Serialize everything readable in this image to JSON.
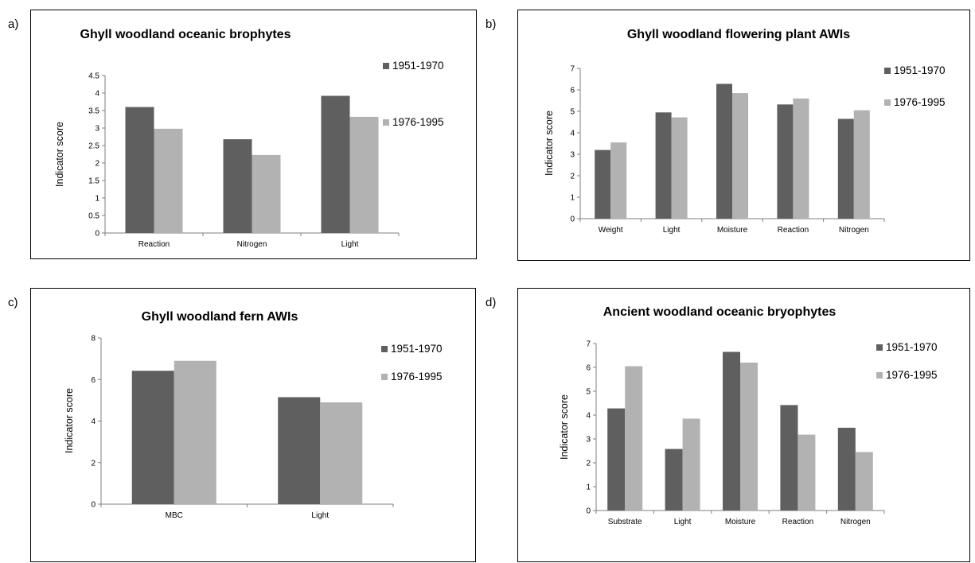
{
  "colors": {
    "series1": "#5f5f5f",
    "series2": "#b2b2b2",
    "axis": "#7f7f7f"
  },
  "chart_data": [
    {
      "panel": "a)",
      "type": "bar",
      "title": "Ghyll woodland oceanic brophytes",
      "ylabel": "Indicator score",
      "xlabel": "",
      "categories": [
        "Reaction",
        "Nitrogen",
        "Light"
      ],
      "ylim": [
        0,
        4.5
      ],
      "yticks": [
        "0",
        "0.5",
        "1",
        "1.5",
        "2",
        "2.5",
        "3",
        "3.5",
        "4",
        "4.5"
      ],
      "ytick_values": [
        0,
        0.5,
        1,
        1.5,
        2,
        2.5,
        3,
        3.5,
        4,
        4.5
      ],
      "grid": false,
      "legend_position": "right",
      "series": [
        {
          "name": "1951-1970",
          "values": [
            3.6,
            2.68,
            3.92
          ]
        },
        {
          "name": "1976-1995",
          "values": [
            2.98,
            2.23,
            3.32
          ]
        }
      ]
    },
    {
      "panel": "b)",
      "type": "bar",
      "title": "Ghyll woodland flowering plant AWIs",
      "ylabel": "Indicator score",
      "xlabel": "",
      "categories": [
        "Weight",
        "Light",
        "Moisture",
        "Reaction",
        "Nitrogen"
      ],
      "ylim": [
        0,
        7
      ],
      "yticks": [
        "0",
        "1",
        "2",
        "3",
        "4",
        "5",
        "6",
        "7"
      ],
      "ytick_values": [
        0,
        1,
        2,
        3,
        4,
        5,
        6,
        7
      ],
      "grid": false,
      "legend_position": "right",
      "series": [
        {
          "name": "1951-1970",
          "values": [
            3.2,
            4.95,
            6.28,
            5.32,
            4.65
          ]
        },
        {
          "name": "1976-1995",
          "values": [
            3.55,
            4.72,
            5.85,
            5.6,
            5.05
          ]
        }
      ]
    },
    {
      "panel": "c)",
      "type": "bar",
      "title": "Ghyll woodland fern AWIs",
      "ylabel": "Indicator score",
      "xlabel": "",
      "categories": [
        "MBC",
        "Light"
      ],
      "ylim": [
        0,
        8
      ],
      "yticks": [
        "0",
        "2",
        "4",
        "6",
        "8"
      ],
      "ytick_values": [
        0,
        2,
        4,
        6,
        8
      ],
      "grid": false,
      "legend_position": "right",
      "series": [
        {
          "name": "1951-1970",
          "values": [
            6.42,
            5.15
          ]
        },
        {
          "name": "1976-1995",
          "values": [
            6.9,
            4.9
          ]
        }
      ]
    },
    {
      "panel": "d)",
      "type": "bar",
      "title": "Ancient woodland oceanic bryophytes",
      "ylabel": "Indicator score",
      "xlabel": "",
      "categories": [
        "Substrate",
        "Light",
        "Moisture",
        "Reaction",
        "Nitrogen"
      ],
      "ylim": [
        0,
        7
      ],
      "yticks": [
        "0",
        "1",
        "2",
        "3",
        "4",
        "5",
        "6",
        "7"
      ],
      "ytick_values": [
        0,
        1,
        2,
        3,
        4,
        5,
        6,
        7
      ],
      "grid": false,
      "legend_position": "right",
      "series": [
        {
          "name": "1951-1970",
          "values": [
            4.28,
            2.58,
            6.65,
            4.42,
            3.47
          ]
        },
        {
          "name": "1976-1995",
          "values": [
            6.05,
            3.85,
            6.2,
            3.18,
            2.45
          ]
        }
      ]
    }
  ]
}
